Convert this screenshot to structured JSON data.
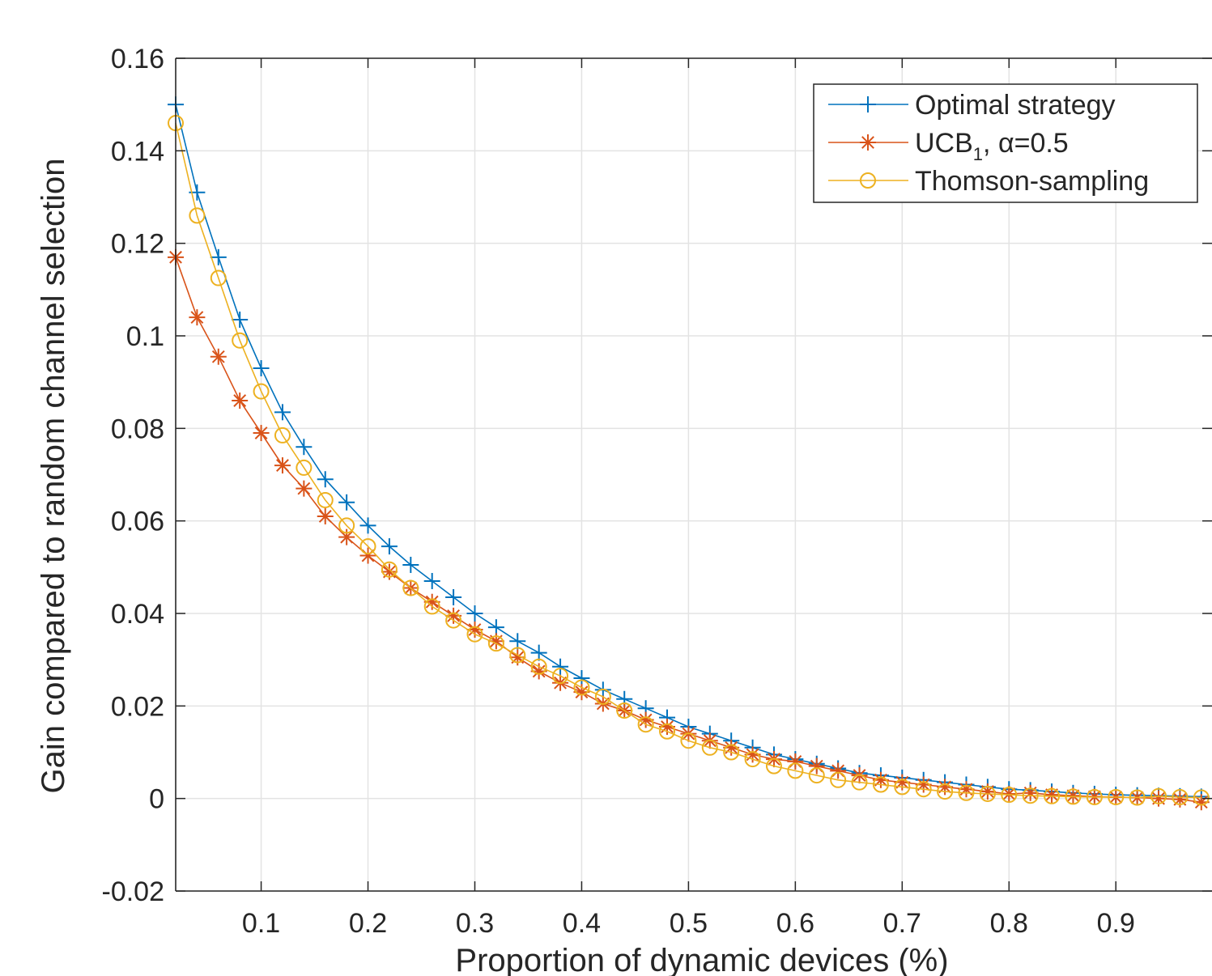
{
  "chart_data": {
    "type": "line",
    "title": "",
    "xlabel": "Proportion of dynamic devices (%)",
    "ylabel": "Gain compared to random channel selection",
    "xlim": [
      0.02,
      0.99
    ],
    "ylim": [
      -0.02,
      0.16
    ],
    "xticks": [
      0.1,
      0.2,
      0.3,
      0.4,
      0.5,
      0.6,
      0.7,
      0.8,
      0.9
    ],
    "xtick_labels": [
      "0.1",
      "0.2",
      "0.3",
      "0.4",
      "0.5",
      "0.6",
      "0.7",
      "0.8",
      "0.9"
    ],
    "yticks": [
      -0.02,
      0,
      0.02,
      0.04,
      0.06,
      0.08,
      0.1,
      0.12,
      0.14,
      0.16
    ],
    "ytick_labels": [
      "-0.02",
      "0",
      "0.02",
      "0.04",
      "0.06",
      "0.08",
      "0.1",
      "0.12",
      "0.14",
      "0.16"
    ],
    "grid": true,
    "legend_position": "top-right",
    "x": [
      0.02,
      0.04,
      0.06,
      0.08,
      0.1,
      0.12,
      0.14,
      0.16,
      0.18,
      0.2,
      0.22,
      0.24,
      0.26,
      0.28,
      0.3,
      0.32,
      0.34,
      0.36,
      0.38,
      0.4,
      0.42,
      0.44,
      0.46,
      0.48,
      0.5,
      0.52,
      0.54,
      0.56,
      0.58,
      0.6,
      0.62,
      0.64,
      0.66,
      0.68,
      0.7,
      0.72,
      0.74,
      0.76,
      0.78,
      0.8,
      0.82,
      0.84,
      0.86,
      0.88,
      0.9,
      0.92,
      0.94,
      0.96,
      0.98
    ],
    "series": [
      {
        "name": "Optimal strategy",
        "label_main": "Optimal strategy",
        "label_sub": "",
        "label_rest": "",
        "color": "#0072BD",
        "marker": "plus",
        "values": [
          0.15,
          0.131,
          0.117,
          0.1035,
          0.093,
          0.0835,
          0.076,
          0.069,
          0.064,
          0.059,
          0.0545,
          0.0505,
          0.047,
          0.0435,
          0.04,
          0.037,
          0.034,
          0.0315,
          0.0285,
          0.026,
          0.0235,
          0.0215,
          0.0195,
          0.0175,
          0.0155,
          0.014,
          0.0125,
          0.011,
          0.0095,
          0.0085,
          0.0075,
          0.0065,
          0.0055,
          0.005,
          0.0045,
          0.004,
          0.0035,
          0.003,
          0.0025,
          0.002,
          0.0018,
          0.0015,
          0.0012,
          0.001,
          0.0008,
          0.0007,
          0.0006,
          0.0005,
          0.0004
        ]
      },
      {
        "name": "UCB1, α=0.5",
        "label_main": "UCB",
        "label_sub": "1",
        "label_rest": ", α=0.5",
        "color": "#D95319",
        "marker": "asterisk",
        "values": [
          0.117,
          0.104,
          0.0955,
          0.086,
          0.079,
          0.072,
          0.067,
          0.061,
          0.0565,
          0.0525,
          0.049,
          0.0455,
          0.0425,
          0.0395,
          0.0365,
          0.034,
          0.0305,
          0.0275,
          0.025,
          0.023,
          0.0205,
          0.019,
          0.017,
          0.0155,
          0.014,
          0.0125,
          0.011,
          0.0095,
          0.0085,
          0.008,
          0.007,
          0.006,
          0.005,
          0.004,
          0.0035,
          0.003,
          0.0025,
          0.002,
          0.0015,
          0.001,
          0.0012,
          0.0008,
          0.0006,
          0.0004,
          0.0003,
          0.0002,
          0.0,
          -0.0002,
          -0.0008
        ]
      },
      {
        "name": "Thomson-sampling",
        "label_main": "Thomson-sampling",
        "label_sub": "",
        "label_rest": "",
        "color": "#EDB120",
        "marker": "circle",
        "values": [
          0.146,
          0.126,
          0.1125,
          0.099,
          0.088,
          0.0785,
          0.0715,
          0.0645,
          0.059,
          0.0545,
          0.0495,
          0.0455,
          0.0415,
          0.0385,
          0.0355,
          0.0335,
          0.031,
          0.0285,
          0.0265,
          0.024,
          0.022,
          0.019,
          0.016,
          0.0145,
          0.0125,
          0.011,
          0.01,
          0.0085,
          0.007,
          0.006,
          0.005,
          0.004,
          0.0035,
          0.003,
          0.0025,
          0.002,
          0.0015,
          0.0012,
          0.001,
          0.0008,
          0.0006,
          0.0005,
          0.0004,
          0.0003,
          0.0003,
          0.0002,
          0.0005,
          0.0003,
          0.0002
        ]
      }
    ]
  }
}
